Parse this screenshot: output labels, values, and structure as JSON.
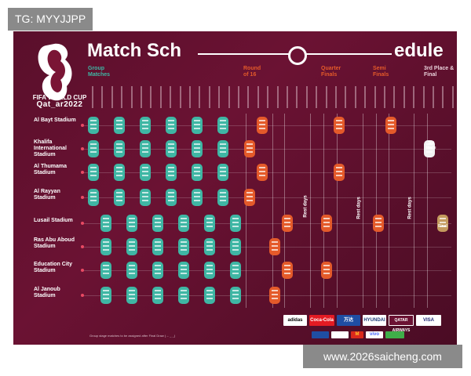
{
  "overlay_tag": "TG: MYYJJPP",
  "watermark": "www.2026saicheng.com",
  "poster": {
    "logo_title": "FIFA WORLD CUP",
    "logo_subtitle": "Qat_ar2022",
    "title_left": "Match Sch",
    "title_right": "edule",
    "sections": {
      "group": "Group Matches",
      "r16": "Round of 16",
      "qf": "Quarter Finals",
      "sf": "Semi Finals",
      "final": "3rd Place & Final"
    },
    "stadiums": [
      "Al Bayt Stadium",
      "Khalifa International Stadium",
      "Al Thumama Stadium",
      "Al Rayyan Stadium",
      "Lusail Stadium",
      "Ras Abu Aboud Stadium",
      "Education City Stadium",
      "Al Janoub Stadium"
    ],
    "rest_days": [
      "Rest days",
      "Rest days",
      "Rest days"
    ],
    "third_place": "3rd Place",
    "final": "Final",
    "footnote": "Group stage matches to be assigned after Final Draw (→ _ _)",
    "sponsors": [
      "adidas",
      "Coca-Cola",
      "万达",
      "HYUNDAI",
      "QATAR AIRWAYS",
      "VISA",
      "",
      "",
      "M",
      "vivo",
      ""
    ],
    "colors": {
      "group": "#3fb6a4",
      "knockout": "#e45a2a",
      "final": "#c49a5e",
      "background": "#5a0f2b"
    }
  }
}
